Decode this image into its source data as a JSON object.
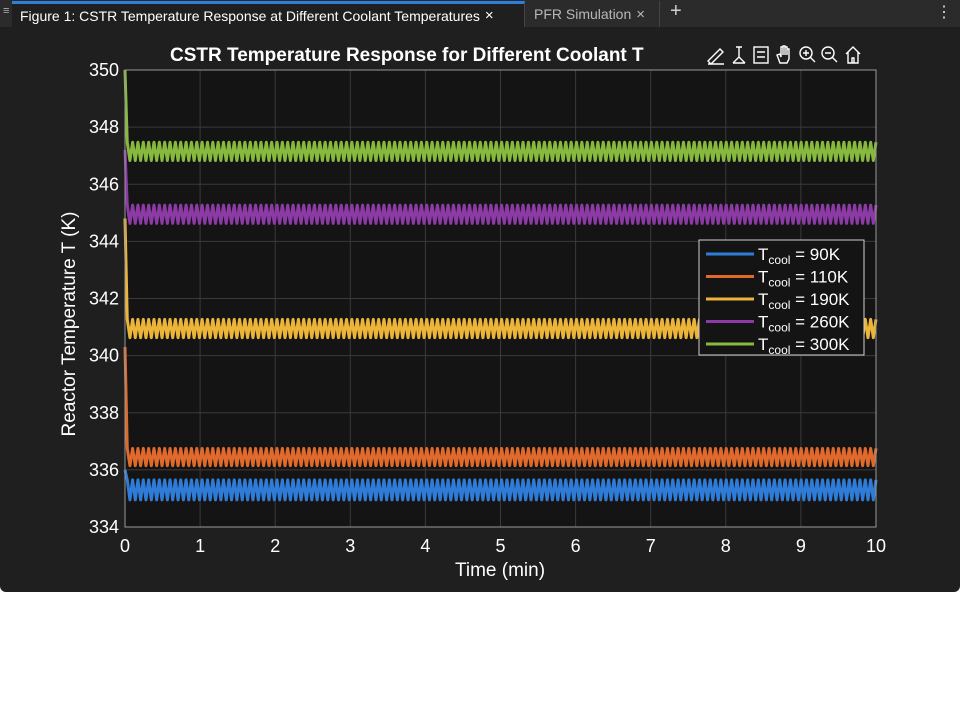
{
  "tabs": [
    {
      "label": "Figure 1: CSTR Temperature Response at Different Coolant Temperatures",
      "close": "×"
    },
    {
      "label": "PFR Simulation",
      "close": "×"
    }
  ],
  "add_tab": "+",
  "more_menu": "⋮",
  "grip": "≡",
  "toolbar_icons": [
    "brush-icon",
    "data-tips-icon",
    "legend-icon",
    "pan-icon",
    "zoom-in-icon",
    "zoom-out-icon",
    "home-icon"
  ],
  "colors": {
    "background": "#1f1f1f",
    "axes_bg": "#141414",
    "grid": "#3a3a3a",
    "text": "#ffffff",
    "accent_tab": "#2f7fd8"
  },
  "chart_data": {
    "type": "line",
    "title": "CSTR Temperature Response for Different Coolant T",
    "xlabel": "Time (min)",
    "ylabel": "Reactor Temperature T (K)",
    "xlim": [
      0,
      10
    ],
    "ylim": [
      334,
      350
    ],
    "xticks": [
      0,
      1,
      2,
      3,
      4,
      5,
      6,
      7,
      8,
      9,
      10
    ],
    "yticks": [
      334,
      336,
      338,
      340,
      342,
      344,
      346,
      348,
      350
    ],
    "grid": true,
    "legend_position": "right",
    "series": [
      {
        "name": "90K",
        "label_prefix": "T",
        "label_sub": "cool",
        "label_eq": "=",
        "color": "#2f7cd8",
        "start": 336.0,
        "mean": 335.3,
        "amplitude": 0.35,
        "settle_time": 0.03
      },
      {
        "name": "110K",
        "label_prefix": "T",
        "label_sub": "cool",
        "label_eq": "=",
        "color": "#e06a2c",
        "start": 340.3,
        "mean": 336.45,
        "amplitude": 0.3,
        "settle_time": 0.03
      },
      {
        "name": "190K",
        "label_prefix": "T",
        "label_sub": "cool",
        "label_eq": "=",
        "color": "#ecb53a",
        "start": 344.8,
        "mean": 340.95,
        "amplitude": 0.32,
        "settle_time": 0.03
      },
      {
        "name": "260K",
        "label_prefix": "T",
        "label_sub": "cool",
        "label_eq": "=",
        "color": "#8b3aa6",
        "start": 347.2,
        "mean": 344.95,
        "amplitude": 0.32,
        "settle_time": 0.03
      },
      {
        "name": "300K",
        "label_prefix": "T",
        "label_sub": "cool",
        "label_eq": "=",
        "color": "#86b93e",
        "start": 350.0,
        "mean": 347.15,
        "amplitude": 0.32,
        "settle_time": 0.03
      }
    ]
  }
}
